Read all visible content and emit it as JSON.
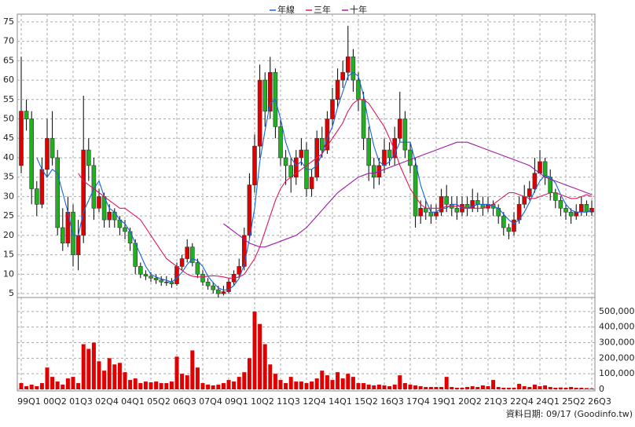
{
  "chart_data": {
    "type": "candlestick",
    "categories": [
      "99Q1",
      null,
      null,
      null,
      null,
      "00Q2",
      null,
      null,
      null,
      null,
      "01Q3",
      null,
      null,
      null,
      null,
      "02Q4",
      null,
      null,
      null,
      null,
      "04Q1",
      null,
      null,
      null,
      null,
      "05Q2",
      null,
      null,
      null,
      null,
      "06Q3",
      null,
      null,
      null,
      null,
      "07Q4",
      null,
      null,
      null,
      null,
      "09Q1",
      null,
      null,
      null,
      null,
      "10Q2",
      null,
      null,
      null,
      null,
      "11Q3",
      null,
      null,
      null,
      null,
      "12Q4",
      null,
      null,
      null,
      null,
      "14Q1",
      null,
      null,
      null,
      null,
      "15Q2",
      null,
      null,
      null,
      null,
      "16Q3",
      null,
      null,
      null,
      null,
      "17Q4",
      null,
      null,
      null,
      null,
      "19Q1",
      null,
      null,
      null,
      null,
      "20Q2",
      null,
      null,
      null,
      null,
      "21Q3",
      null,
      null,
      null,
      null,
      "22Q4",
      null,
      null,
      null,
      null,
      "24Q1",
      null,
      null,
      null,
      null,
      "25Q2",
      null,
      null,
      null,
      null,
      "26Q3"
    ],
    "open": [
      38,
      52,
      50,
      32,
      28,
      37,
      45,
      40,
      22,
      18,
      26,
      15,
      20,
      42,
      38,
      27,
      30,
      24,
      26,
      24,
      22,
      21,
      18,
      12,
      10,
      9.5,
      9,
      8.5,
      8,
      8,
      7.5,
      12,
      14,
      17,
      13,
      10,
      8,
      7,
      6,
      5,
      5.5,
      8,
      10,
      12,
      20,
      33,
      43,
      60,
      52,
      62,
      48,
      40,
      38,
      35,
      40,
      42,
      32,
      35,
      45,
      42,
      50,
      55,
      60,
      62,
      66,
      60,
      55,
      45,
      38,
      35,
      38,
      42,
      40,
      45,
      50,
      42,
      38,
      25,
      27,
      26,
      25,
      26,
      30,
      28,
      27,
      26,
      28,
      27,
      29,
      28,
      27,
      28,
      27,
      25,
      22,
      21,
      24,
      28,
      30,
      32,
      36,
      39,
      35,
      31,
      29,
      27,
      26,
      25,
      26,
      28,
      26
    ],
    "high": [
      66,
      55,
      52,
      34,
      40,
      50,
      52,
      42,
      27,
      30,
      28,
      24,
      56,
      45,
      40,
      32,
      31,
      28,
      27,
      25,
      24,
      22,
      19,
      13,
      11,
      10.5,
      10,
      9.5,
      9.5,
      9,
      13,
      15,
      19,
      18,
      14,
      11,
      9,
      8,
      7,
      7,
      9,
      11,
      14,
      22,
      36,
      46,
      64,
      62,
      66,
      63,
      50,
      42,
      40,
      42,
      45,
      44,
      37,
      47,
      48,
      52,
      58,
      63,
      65,
      74,
      68,
      62,
      57,
      48,
      40,
      40,
      45,
      44,
      48,
      57,
      52,
      44,
      40,
      29,
      29,
      28,
      28,
      32,
      33,
      30,
      30,
      30,
      30,
      32,
      31,
      30,
      30,
      29,
      28,
      26,
      23,
      26,
      30,
      33,
      34,
      40,
      42,
      40,
      37,
      32,
      30,
      28,
      27,
      28,
      30,
      29,
      29
    ],
    "low": [
      36,
      47,
      28,
      25,
      27,
      35,
      38,
      20,
      16,
      17,
      12,
      11,
      18,
      34,
      24,
      26,
      22,
      22,
      22,
      20,
      19,
      16,
      10,
      9,
      8.5,
      8,
      7.5,
      7,
      7,
      6.5,
      7,
      11,
      13,
      12,
      9,
      7,
      6,
      5,
      4,
      4.5,
      5,
      7,
      9,
      11,
      19,
      31,
      40,
      48,
      50,
      45,
      38,
      33,
      31,
      33,
      38,
      30,
      30,
      34,
      40,
      41,
      48,
      53,
      58,
      60,
      57,
      52,
      42,
      34,
      32,
      33,
      36,
      38,
      38,
      44,
      40,
      36,
      22,
      23,
      24,
      23,
      24,
      25,
      26,
      25,
      24,
      25,
      25,
      26,
      26,
      25,
      26,
      25,
      23,
      20,
      19,
      20,
      23,
      27,
      29,
      31,
      36,
      33,
      29,
      27,
      25,
      24,
      23,
      24,
      25,
      25,
      25
    ],
    "close": [
      52,
      50,
      32,
      28,
      37,
      45,
      40,
      22,
      18,
      26,
      15,
      20,
      42,
      38,
      27,
      30,
      24,
      26,
      24,
      22,
      21,
      18,
      12,
      10,
      9.5,
      9,
      8.5,
      8,
      8,
      7.5,
      12,
      14,
      17,
      13,
      10,
      8,
      7,
      6,
      5,
      5.5,
      8,
      10,
      12,
      20,
      33,
      43,
      60,
      52,
      62,
      48,
      40,
      38,
      35,
      40,
      42,
      32,
      35,
      45,
      42,
      50,
      55,
      60,
      62,
      66,
      60,
      55,
      45,
      38,
      35,
      38,
      42,
      40,
      45,
      50,
      42,
      38,
      25,
      27,
      26,
      25,
      26,
      30,
      28,
      27,
      26,
      28,
      27,
      29,
      28,
      27,
      28,
      27,
      25,
      22,
      21,
      24,
      28,
      30,
      32,
      36,
      39,
      35,
      31,
      29,
      27,
      26,
      25,
      26,
      28,
      26,
      27
    ],
    "volume": [
      40000,
      20000,
      30000,
      20000,
      40000,
      140000,
      80000,
      50000,
      30000,
      70000,
      80000,
      40000,
      290000,
      260000,
      300000,
      180000,
      120000,
      200000,
      160000,
      170000,
      110000,
      60000,
      70000,
      40000,
      50000,
      45000,
      50000,
      40000,
      40000,
      50000,
      210000,
      100000,
      90000,
      250000,
      140000,
      40000,
      30000,
      25000,
      30000,
      40000,
      60000,
      50000,
      80000,
      110000,
      200000,
      500000,
      420000,
      290000,
      160000,
      100000,
      60000,
      40000,
      80000,
      50000,
      50000,
      40000,
      50000,
      70000,
      120000,
      90000,
      60000,
      110000,
      70000,
      100000,
      80000,
      40000,
      40000,
      30000,
      25000,
      30000,
      25000,
      20000,
      30000,
      90000,
      40000,
      30000,
      25000,
      20000,
      15000,
      15000,
      15000,
      15000,
      80000,
      15000,
      10000,
      10000,
      15000,
      20000,
      15000,
      25000,
      20000,
      60000,
      15000,
      10000,
      10000,
      10000,
      35000,
      20000,
      15000,
      30000,
      20000,
      25000,
      15000,
      10000,
      12000,
      10000,
      15000,
      10000,
      10000,
      8000,
      6000
    ],
    "series": [
      {
        "name": "年線",
        "color": "#1565e0",
        "values": [
          null,
          null,
          null,
          40,
          37,
          35,
          37,
          36,
          31,
          26,
          20,
          20,
          26,
          29,
          32,
          34,
          30,
          27,
          26,
          24,
          23,
          21,
          18,
          15,
          12,
          10,
          9.3,
          8.8,
          8.4,
          8,
          9,
          10.5,
          12.5,
          14,
          13.5,
          12,
          9.5,
          7.8,
          6.5,
          5.9,
          6,
          7.1,
          8.9,
          12.5,
          19,
          27,
          39,
          47,
          54,
          55,
          50,
          44,
          40,
          38,
          39,
          37,
          37,
          38,
          41,
          45,
          48,
          53,
          57,
          61,
          62,
          61,
          56,
          49,
          43,
          39,
          38,
          39,
          41,
          44,
          44,
          44,
          39,
          33,
          29,
          26,
          26,
          27,
          27,
          28,
          28,
          27,
          27,
          27.5,
          28,
          28,
          28,
          27.5,
          27,
          25.5,
          24,
          23,
          24,
          26,
          28.5,
          31.5,
          34,
          35.5,
          35,
          33.5,
          30.5,
          28,
          26.5,
          26,
          26,
          26,
          26.5
        ]
      },
      {
        "name": "三年",
        "color": "#e0185a",
        "values": [
          null,
          null,
          null,
          null,
          null,
          null,
          null,
          null,
          null,
          null,
          null,
          36,
          34,
          33,
          32,
          31,
          30,
          29,
          28,
          27,
          27,
          26,
          25,
          24,
          22,
          20,
          18,
          16,
          14,
          13,
          12,
          11,
          10,
          9.5,
          9.3,
          9.3,
          9.5,
          9.6,
          9.5,
          9.3,
          9,
          9,
          9.3,
          10,
          12,
          14,
          17,
          21,
          25,
          29,
          32,
          34,
          35,
          36,
          37,
          38,
          39,
          40,
          41,
          43,
          45,
          47,
          49,
          52,
          54,
          55,
          55,
          54,
          52,
          50,
          48,
          45,
          42,
          38,
          35,
          32,
          30,
          28,
          27,
          27,
          27,
          27,
          27.5,
          27.5,
          27.5,
          27.5,
          27,
          27,
          27,
          27,
          27.5,
          28,
          29,
          30,
          31,
          31,
          30.5,
          30,
          29.5,
          29.5,
          30,
          30.5,
          31,
          31,
          30.5,
          30,
          29.5,
          29.5,
          30,
          30.5,
          30
        ]
      },
      {
        "name": "十年",
        "color": "#a01ca8",
        "values": [
          null,
          null,
          null,
          null,
          null,
          null,
          null,
          null,
          null,
          null,
          null,
          null,
          null,
          null,
          null,
          null,
          null,
          null,
          null,
          null,
          null,
          null,
          null,
          null,
          null,
          null,
          null,
          null,
          null,
          null,
          null,
          null,
          null,
          null,
          null,
          null,
          null,
          null,
          null,
          23,
          22,
          21,
          20,
          19,
          18,
          17.5,
          17,
          17,
          17.5,
          18,
          18.5,
          19,
          19.5,
          20,
          21,
          22,
          23.5,
          25,
          26.5,
          28,
          29.5,
          31,
          32,
          33,
          34,
          35,
          35.5,
          36,
          36,
          36.5,
          37,
          37.5,
          38,
          38.5,
          39,
          39.5,
          40,
          40.5,
          41,
          41.5,
          42,
          42.5,
          43,
          43.5,
          44,
          44,
          44,
          43.5,
          43,
          42.5,
          42,
          41.5,
          41,
          40.5,
          40,
          39.5,
          39,
          38.5,
          38,
          37,
          36,
          35,
          34.5,
          34,
          33.5,
          33,
          32.5,
          32,
          31.5,
          31,
          30.5
        ]
      }
    ],
    "ylim": [
      4,
      77
    ],
    "yticks": [
      5,
      10,
      15,
      20,
      25,
      30,
      35,
      40,
      45,
      50,
      55,
      60,
      65,
      70,
      75
    ],
    "y2lim": [
      0,
      590000
    ],
    "y2ticks": [
      0,
      {
        "value": 100000,
        "label": "100,000"
      },
      {
        "value": 200000,
        "label": "200,000"
      },
      {
        "value": 300000,
        "label": "300,000"
      },
      {
        "value": 400000,
        "label": "400,000"
      },
      {
        "value": 500000,
        "label": "500,000"
      }
    ],
    "up_color": "#e00000",
    "down_color": "#22b022",
    "volume_color": "#e00000",
    "grid": true,
    "legend": "top",
    "note": "資料日期: 09/17  (Goodinfo.tw)"
  }
}
